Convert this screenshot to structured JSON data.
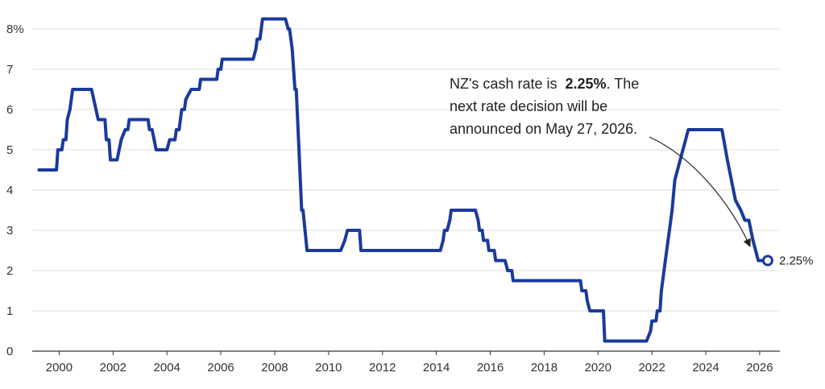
{
  "chart_data": {
    "type": "line",
    "title": "",
    "xlabel": "",
    "ylabel": "",
    "xlim": [
      1999.0,
      2026.75
    ],
    "ylim": [
      0,
      8.4
    ],
    "grid": "horizontal",
    "colors": {
      "line": "#1a3a9c",
      "grid": "#dddddd",
      "axis": "#333333"
    },
    "x_ticks": [
      {
        "value": 2000,
        "label": "2000"
      },
      {
        "value": 2002,
        "label": "2002"
      },
      {
        "value": 2004,
        "label": "2004"
      },
      {
        "value": 2006,
        "label": "2006"
      },
      {
        "value": 2008,
        "label": "2008"
      },
      {
        "value": 2010,
        "label": "2010"
      },
      {
        "value": 2012,
        "label": "2012"
      },
      {
        "value": 2014,
        "label": "2014"
      },
      {
        "value": 2016,
        "label": "2016"
      },
      {
        "value": 2018,
        "label": "2018"
      },
      {
        "value": 2020,
        "label": "2020"
      },
      {
        "value": 2022,
        "label": "2022"
      },
      {
        "value": 2024,
        "label": "2024"
      },
      {
        "value": 2026,
        "label": "2026"
      }
    ],
    "y_ticks": [
      {
        "value": 0,
        "label": "0"
      },
      {
        "value": 1,
        "label": "1"
      },
      {
        "value": 2,
        "label": "2"
      },
      {
        "value": 3,
        "label": "3"
      },
      {
        "value": 4,
        "label": "4"
      },
      {
        "value": 5,
        "label": "5"
      },
      {
        "value": 6,
        "label": "6"
      },
      {
        "value": 7,
        "label": "7"
      },
      {
        "value": 8,
        "label": "8%"
      }
    ],
    "series": [
      {
        "points": [
          [
            1999.25,
            4.5
          ],
          [
            1999.9,
            4.5
          ],
          [
            1999.95,
            5.0
          ],
          [
            2000.1,
            5.0
          ],
          [
            2000.15,
            5.25
          ],
          [
            2000.25,
            5.25
          ],
          [
            2000.3,
            5.75
          ],
          [
            2000.4,
            6.0
          ],
          [
            2000.5,
            6.5
          ],
          [
            2001.2,
            6.5
          ],
          [
            2001.45,
            5.75
          ],
          [
            2001.7,
            5.75
          ],
          [
            2001.75,
            5.25
          ],
          [
            2001.85,
            5.25
          ],
          [
            2001.9,
            4.75
          ],
          [
            2002.15,
            4.75
          ],
          [
            2002.3,
            5.25
          ],
          [
            2002.45,
            5.5
          ],
          [
            2002.55,
            5.5
          ],
          [
            2002.6,
            5.75
          ],
          [
            2003.3,
            5.75
          ],
          [
            2003.35,
            5.5
          ],
          [
            2003.45,
            5.5
          ],
          [
            2003.6,
            5.0
          ],
          [
            2004.0,
            5.0
          ],
          [
            2004.1,
            5.25
          ],
          [
            2004.3,
            5.25
          ],
          [
            2004.35,
            5.5
          ],
          [
            2004.45,
            5.5
          ],
          [
            2004.5,
            5.75
          ],
          [
            2004.55,
            6.0
          ],
          [
            2004.65,
            6.0
          ],
          [
            2004.7,
            6.25
          ],
          [
            2004.9,
            6.5
          ],
          [
            2005.2,
            6.5
          ],
          [
            2005.25,
            6.75
          ],
          [
            2005.85,
            6.75
          ],
          [
            2005.9,
            7.0
          ],
          [
            2006.0,
            7.0
          ],
          [
            2006.05,
            7.25
          ],
          [
            2007.2,
            7.25
          ],
          [
            2007.3,
            7.5
          ],
          [
            2007.35,
            7.75
          ],
          [
            2007.45,
            7.75
          ],
          [
            2007.55,
            8.25
          ],
          [
            2008.4,
            8.25
          ],
          [
            2008.5,
            8.0
          ],
          [
            2008.55,
            8.0
          ],
          [
            2008.65,
            7.5
          ],
          [
            2008.75,
            6.5
          ],
          [
            2008.8,
            6.5
          ],
          [
            2008.9,
            5.0
          ],
          [
            2009.0,
            3.5
          ],
          [
            2009.05,
            3.5
          ],
          [
            2009.2,
            2.5
          ],
          [
            2010.45,
            2.5
          ],
          [
            2010.6,
            2.75
          ],
          [
            2010.7,
            3.0
          ],
          [
            2011.15,
            3.0
          ],
          [
            2011.2,
            2.5
          ],
          [
            2014.15,
            2.5
          ],
          [
            2014.25,
            2.75
          ],
          [
            2014.3,
            3.0
          ],
          [
            2014.4,
            3.0
          ],
          [
            2014.5,
            3.25
          ],
          [
            2014.55,
            3.5
          ],
          [
            2015.45,
            3.5
          ],
          [
            2015.55,
            3.25
          ],
          [
            2015.6,
            3.0
          ],
          [
            2015.7,
            3.0
          ],
          [
            2015.75,
            2.75
          ],
          [
            2015.9,
            2.75
          ],
          [
            2015.95,
            2.5
          ],
          [
            2016.15,
            2.5
          ],
          [
            2016.2,
            2.25
          ],
          [
            2016.55,
            2.25
          ],
          [
            2016.65,
            2.0
          ],
          [
            2016.8,
            2.0
          ],
          [
            2016.85,
            1.75
          ],
          [
            2019.35,
            1.75
          ],
          [
            2019.4,
            1.5
          ],
          [
            2019.55,
            1.5
          ],
          [
            2019.6,
            1.25
          ],
          [
            2019.7,
            1.0
          ],
          [
            2020.2,
            1.0
          ],
          [
            2020.25,
            0.25
          ],
          [
            2021.8,
            0.25
          ],
          [
            2021.95,
            0.5
          ],
          [
            2022.0,
            0.75
          ],
          [
            2022.15,
            0.75
          ],
          [
            2022.2,
            1.0
          ],
          [
            2022.3,
            1.0
          ],
          [
            2022.35,
            1.5
          ],
          [
            2022.45,
            2.0
          ],
          [
            2022.55,
            2.5
          ],
          [
            2022.65,
            3.0
          ],
          [
            2022.75,
            3.5
          ],
          [
            2022.85,
            4.25
          ],
          [
            2023.05,
            4.75
          ],
          [
            2023.25,
            5.25
          ],
          [
            2023.35,
            5.5
          ],
          [
            2024.6,
            5.5
          ],
          [
            2024.8,
            4.75
          ],
          [
            2024.95,
            4.25
          ],
          [
            2025.1,
            3.75
          ],
          [
            2025.3,
            3.5
          ],
          [
            2025.45,
            3.25
          ],
          [
            2025.6,
            3.25
          ],
          [
            2025.75,
            2.75
          ],
          [
            2025.85,
            2.5
          ],
          [
            2025.95,
            2.25
          ],
          [
            2026.3,
            2.25
          ]
        ]
      }
    ],
    "end_label": "2.25%",
    "annotation": {
      "lines": [
        [
          {
            "text": "NZ's cash rate is  ",
            "bold": false
          },
          {
            "text": "2.25%",
            "bold": true
          },
          {
            "text": ". The",
            "bold": false
          }
        ],
        [
          {
            "text": "next rate decision will be",
            "bold": false
          }
        ],
        [
          {
            "text": "announced on May 27, 2026.",
            "bold": false
          }
        ]
      ],
      "points_to": [
        2025.75,
        2.5
      ]
    }
  }
}
